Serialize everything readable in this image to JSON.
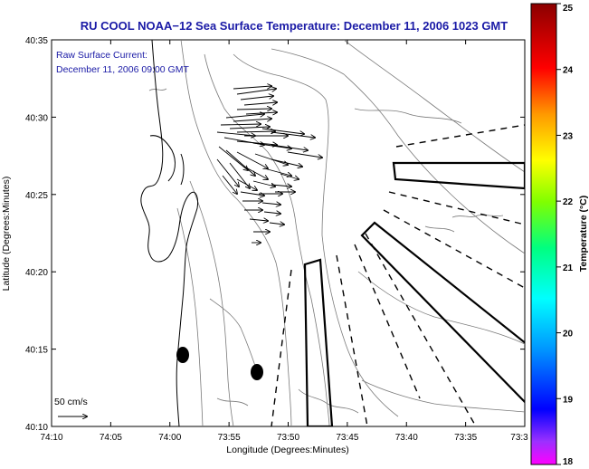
{
  "title": "RU COOL  NOAA−12  Sea Surface Temperature:  December 11, 2006 1023 GMT",
  "note": {
    "line1": "Raw Surface Current:",
    "line2": "December 11, 2006 09:00 GMT"
  },
  "axes": {
    "xlabel": "Longitude (Degrees:Minutes)",
    "ylabel": "Latitude (Degrees:Minutes)",
    "x_ticks": [
      "74:10",
      "74:05",
      "74:00",
      "73:55",
      "73:50",
      "73:45",
      "73:40",
      "73:35",
      "73:3"
    ],
    "y_ticks": [
      "40:35",
      "40:30",
      "40:25",
      "40:20",
      "40:15",
      "40:10"
    ]
  },
  "scale_label": "50 cm/s",
  "colorbar": {
    "label": "Temperature (°C)",
    "ticks": [
      "25",
      "24",
      "23",
      "22",
      "21",
      "20",
      "19",
      "18"
    ],
    "min": 18,
    "max": 25,
    "colors": [
      "#ff00ff",
      "#6a00ff",
      "#0000ff",
      "#0096ff",
      "#00ffff",
      "#00ff80",
      "#80ff00",
      "#ffff00",
      "#ff8000",
      "#ff0000",
      "#800000"
    ]
  }
}
